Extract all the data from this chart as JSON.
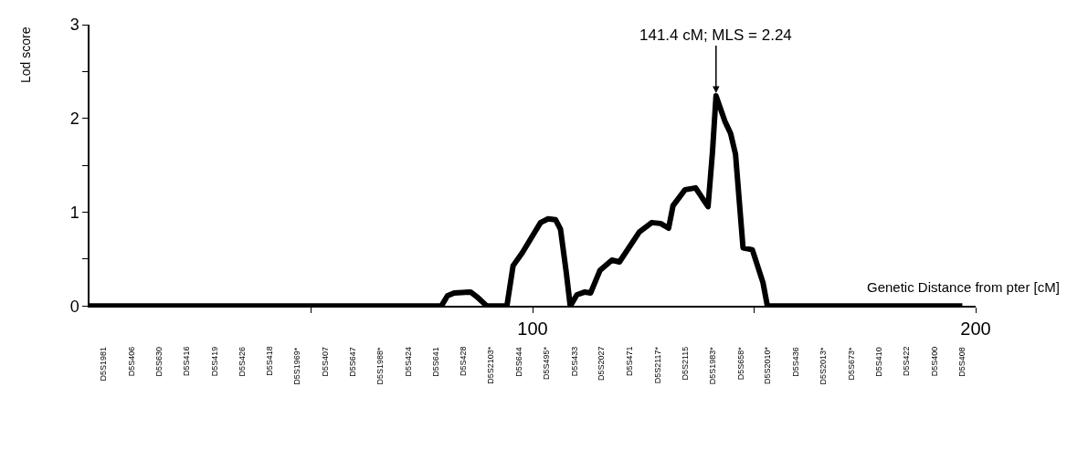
{
  "chart_data": {
    "type": "line",
    "xlabel": "Genetic Distance from pter [cM]",
    "ylabel": "Lod score",
    "series": [
      {
        "color": "#000000",
        "x": [
          0,
          79.4,
          80.8,
          82.3,
          86.0,
          87.4,
          89.7,
          94.2,
          95.6,
          97.7,
          101.8,
          103.5,
          105.2,
          106.3,
          107.6,
          108.5,
          110.0,
          111.8,
          113.1,
          115.2,
          117.9,
          119.6,
          124.1,
          126.9,
          128.9,
          130.7,
          131.7,
          134.4,
          136.8,
          138.6,
          139.6,
          140.6,
          141.4,
          143.4,
          144.7,
          145.8,
          147.5,
          149.6,
          152.0,
          153.0,
          197
        ],
        "values": [
          0,
          0,
          0.11,
          0.14,
          0.15,
          0.1,
          0,
          0,
          0.43,
          0.57,
          0.89,
          0.93,
          0.92,
          0.82,
          0.36,
          0,
          0.12,
          0.15,
          0.14,
          0.38,
          0.49,
          0.47,
          0.79,
          0.89,
          0.88,
          0.83,
          1.07,
          1.24,
          1.26,
          1.13,
          1.06,
          1.64,
          2.24,
          1.97,
          1.84,
          1.62,
          0.62,
          0.6,
          0.25,
          0,
          0
        ]
      }
    ],
    "xlim": [
      0,
      200
    ],
    "xticks": [
      {
        "value": 50,
        "label": null
      },
      100,
      {
        "value": 150,
        "label": null
      },
      200
    ],
    "ylim": [
      0,
      3
    ],
    "yticks": [
      0,
      {
        "value": 0.5,
        "label": null
      },
      1,
      {
        "value": 1.5,
        "label": null
      },
      2,
      {
        "value": 2.5,
        "label": null
      },
      3
    ],
    "marker": "none",
    "line_style": "solid",
    "annotations": [
      {
        "text": "141.4 cM; MLS = 2.24",
        "x": 141.4,
        "y": 2.24
      },
      "D5S1981",
      "D5S406",
      "D5S630",
      "D5S416",
      "D5S419",
      "D5S426",
      "D5S418",
      "D5S1969*",
      "D5S407",
      "D5S647",
      "D5S1988*",
      "D5S424",
      "D5S641",
      "D5S428",
      "D5S2103*",
      "D5S644",
      "D5S495*",
      "D5S433",
      "D5S2027",
      "D5S471",
      "D5S2117*",
      "D5S2115",
      "D5S1983*",
      "D5S658*",
      "D5S2010*",
      "D5S436",
      "D5S2013*",
      "D5S673*",
      "D5S410",
      "D5S422",
      "D5S400",
      "D5S408"
    ]
  }
}
